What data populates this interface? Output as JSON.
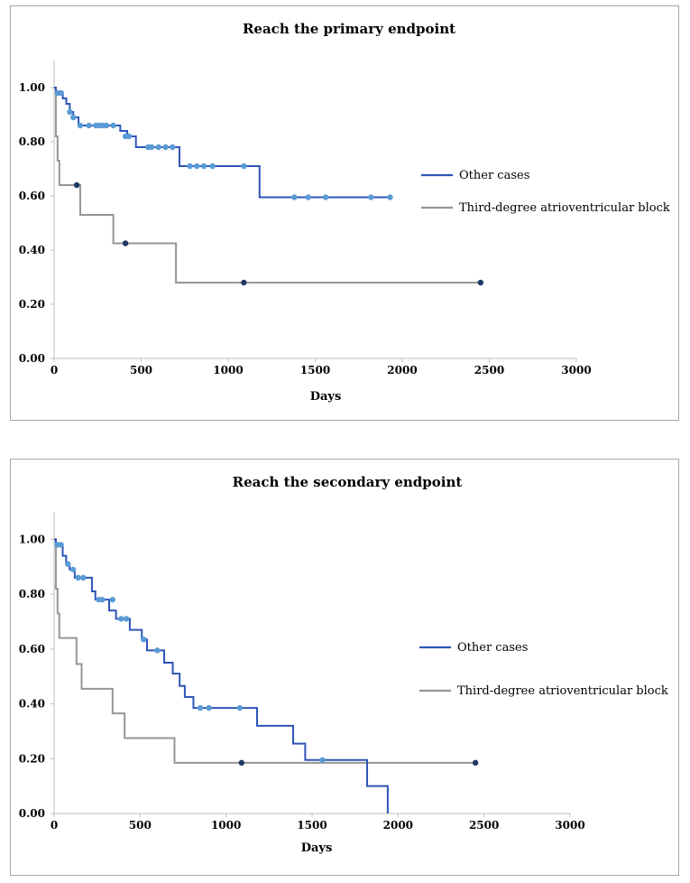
{
  "chart_data": [
    {
      "type": "line",
      "subtype": "kaplan-meier step",
      "title": "Reach the primary endpoint",
      "xlabel": "Days",
      "ylabel": "",
      "xlim": [
        0,
        3000
      ],
      "ylim": [
        0,
        1.1
      ],
      "x_ticks": [
        "0",
        "500",
        "1000",
        "1500",
        "2000",
        "2500",
        "3000"
      ],
      "y_ticks": [
        "0.00",
        "0.20",
        "0.40",
        "0.60",
        "0.80",
        "1.00"
      ],
      "legend_position": "right",
      "series": [
        {
          "name": "Other cases",
          "color": "#2e54b8",
          "marker_color": "#5b9bd5",
          "steps": [
            [
              0,
              1.0
            ],
            [
              10,
              0.98
            ],
            [
              50,
              0.96
            ],
            [
              70,
              0.94
            ],
            [
              90,
              0.91
            ],
            [
              110,
              0.89
            ],
            [
              140,
              0.86
            ],
            [
              380,
              0.84
            ],
            [
              420,
              0.82
            ],
            [
              470,
              0.78
            ],
            [
              720,
              0.71
            ],
            [
              1180,
              0.595
            ],
            [
              1940,
              0.595
            ]
          ],
          "censored": [
            [
              20,
              0.98
            ],
            [
              40,
              0.98
            ],
            [
              90,
              0.91
            ],
            [
              110,
              0.89
            ],
            [
              150,
              0.86
            ],
            [
              200,
              0.86
            ],
            [
              240,
              0.86
            ],
            [
              260,
              0.86
            ],
            [
              280,
              0.86
            ],
            [
              300,
              0.86
            ],
            [
              340,
              0.86
            ],
            [
              410,
              0.82
            ],
            [
              430,
              0.82
            ],
            [
              540,
              0.78
            ],
            [
              560,
              0.78
            ],
            [
              600,
              0.78
            ],
            [
              640,
              0.78
            ],
            [
              680,
              0.78
            ],
            [
              780,
              0.71
            ],
            [
              820,
              0.71
            ],
            [
              860,
              0.71
            ],
            [
              910,
              0.71
            ],
            [
              1090,
              0.71
            ],
            [
              1380,
              0.595
            ],
            [
              1460,
              0.595
            ],
            [
              1560,
              0.595
            ],
            [
              1820,
              0.595
            ],
            [
              1930,
              0.595
            ]
          ]
        },
        {
          "name": "Third-degree atrioventricular block",
          "color": "#969696",
          "marker_color": "#1f3864",
          "steps": [
            [
              0,
              1.0
            ],
            [
              10,
              0.82
            ],
            [
              20,
              0.73
            ],
            [
              30,
              0.64
            ],
            [
              150,
              0.53
            ],
            [
              340,
              0.425
            ],
            [
              700,
              0.28
            ],
            [
              2460,
              0.28
            ]
          ],
          "censored": [
            [
              130,
              0.64
            ],
            [
              410,
              0.425
            ],
            [
              1090,
              0.28
            ],
            [
              2450,
              0.28
            ]
          ]
        }
      ]
    },
    {
      "type": "line",
      "subtype": "kaplan-meier step",
      "title": "Reach the secondary endpoint",
      "xlabel": "Days",
      "ylabel": "",
      "xlim": [
        0,
        3000
      ],
      "ylim": [
        0,
        1.1
      ],
      "x_ticks": [
        "0",
        "500",
        "1000",
        "1500",
        "2000",
        "2500",
        "3000"
      ],
      "y_ticks": [
        "0.00",
        "0.20",
        "0.40",
        "0.60",
        "0.80",
        "1.00"
      ],
      "legend_position": "right",
      "series": [
        {
          "name": "Other cases",
          "color": "#2e54b8",
          "marker_color": "#5b9bd5",
          "steps": [
            [
              0,
              1.0
            ],
            [
              10,
              0.98
            ],
            [
              50,
              0.94
            ],
            [
              70,
              0.91
            ],
            [
              90,
              0.89
            ],
            [
              120,
              0.86
            ],
            [
              220,
              0.81
            ],
            [
              240,
              0.78
            ],
            [
              320,
              0.74
            ],
            [
              360,
              0.71
            ],
            [
              440,
              0.67
            ],
            [
              510,
              0.635
            ],
            [
              540,
              0.595
            ],
            [
              640,
              0.55
            ],
            [
              690,
              0.51
            ],
            [
              730,
              0.465
            ],
            [
              760,
              0.425
            ],
            [
              810,
              0.385
            ],
            [
              1180,
              0.32
            ],
            [
              1390,
              0.255
            ],
            [
              1460,
              0.195
            ],
            [
              1820,
              0.1
            ],
            [
              1940,
              0.0
            ]
          ],
          "censored": [
            [
              20,
              0.98
            ],
            [
              40,
              0.98
            ],
            [
              80,
              0.91
            ],
            [
              110,
              0.89
            ],
            [
              140,
              0.86
            ],
            [
              170,
              0.86
            ],
            [
              260,
              0.78
            ],
            [
              280,
              0.78
            ],
            [
              340,
              0.78
            ],
            [
              390,
              0.71
            ],
            [
              420,
              0.71
            ],
            [
              520,
              0.635
            ],
            [
              600,
              0.595
            ],
            [
              850,
              0.385
            ],
            [
              900,
              0.385
            ],
            [
              1080,
              0.385
            ],
            [
              1560,
              0.195
            ]
          ]
        },
        {
          "name": "Third-degree atrioventricular block",
          "color": "#969696",
          "marker_color": "#1f3864",
          "steps": [
            [
              0,
              1.0
            ],
            [
              10,
              0.82
            ],
            [
              20,
              0.73
            ],
            [
              30,
              0.64
            ],
            [
              130,
              0.545
            ],
            [
              160,
              0.455
            ],
            [
              340,
              0.365
            ],
            [
              410,
              0.275
            ],
            [
              700,
              0.185
            ],
            [
              2460,
              0.185
            ]
          ],
          "censored": [
            [
              1090,
              0.185
            ],
            [
              2450,
              0.185
            ]
          ]
        }
      ]
    }
  ]
}
